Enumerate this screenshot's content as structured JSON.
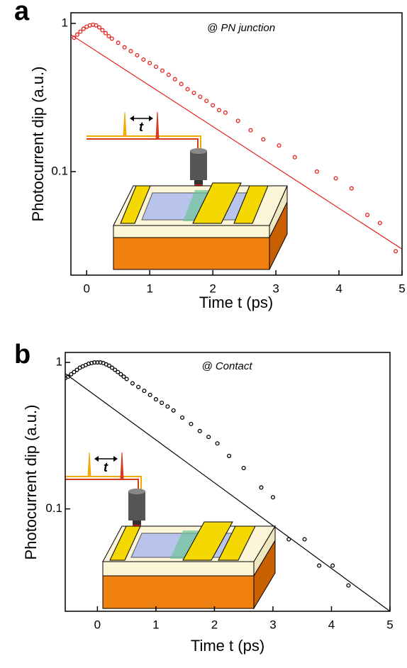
{
  "chart_data": [
    {
      "type": "scatter",
      "panel_label": "a",
      "annotation": "@ PN junction",
      "inset_label": "t",
      "x_label": "Time t (ps)",
      "y_label": "Photocurrent dip (a.u.)",
      "log_y": true,
      "xlim": [
        -0.25,
        5
      ],
      "xticks": [
        0,
        1,
        2,
        3,
        4,
        5
      ],
      "ylim": [
        0.02,
        1.18
      ],
      "yticks": [
        0.1,
        1
      ],
      "series": [
        {
          "style": "markers",
          "color": "#e8201c",
          "x": [
            -0.2,
            -0.15,
            -0.1,
            -0.05,
            0,
            0.05,
            0.1,
            0.15,
            0.2,
            0.25,
            0.3,
            0.35,
            0.4,
            0.5,
            0.6,
            0.7,
            0.8,
            0.9,
            1.0,
            1.1,
            1.2,
            1.3,
            1.4,
            1.5,
            1.6,
            1.7,
            1.8,
            1.9,
            2.0,
            2.1,
            2.2,
            2.4,
            2.6,
            2.8,
            3.05,
            3.3,
            3.65,
            3.95,
            4.2,
            4.45,
            4.65,
            4.9
          ],
          "values": [
            0.8,
            0.84,
            0.88,
            0.92,
            0.95,
            0.97,
            0.98,
            0.97,
            0.94,
            0.9,
            0.86,
            0.82,
            0.79,
            0.74,
            0.69,
            0.65,
            0.61,
            0.57,
            0.54,
            0.51,
            0.48,
            0.45,
            0.42,
            0.39,
            0.36,
            0.34,
            0.32,
            0.3,
            0.28,
            0.26,
            0.25,
            0.22,
            0.19,
            0.165,
            0.15,
            0.125,
            0.1,
            0.09,
            0.077,
            0.051,
            0.045,
            0.029
          ]
        },
        {
          "style": "line",
          "color": "#e8201c",
          "x": [
            -0.25,
            5
          ],
          "values": [
            0.84,
            0.03
          ]
        }
      ]
    },
    {
      "type": "scatter",
      "panel_label": "b",
      "annotation": "@ Contact",
      "inset_label": "t",
      "x_label": "Time t (ps)",
      "y_label": "Photocurrent dip (a.u.)",
      "log_y": true,
      "xlim": [
        -0.55,
        5
      ],
      "xticks": [
        0,
        1,
        2,
        3,
        4,
        5
      ],
      "ylim": [
        0.02,
        1.17
      ],
      "yticks": [
        0.1,
        1
      ],
      "series": [
        {
          "style": "markers",
          "color": "#000000",
          "x": [
            -0.55,
            -0.5,
            -0.45,
            -0.4,
            -0.35,
            -0.3,
            -0.25,
            -0.2,
            -0.15,
            -0.1,
            -0.05,
            0,
            0.05,
            0.1,
            0.15,
            0.2,
            0.25,
            0.3,
            0.35,
            0.4,
            0.45,
            0.5,
            0.6,
            0.7,
            0.8,
            0.9,
            1.0,
            1.1,
            1.2,
            1.3,
            1.45,
            1.6,
            1.75,
            1.9,
            2.05,
            2.25,
            2.5,
            2.8,
            3.0,
            3.27,
            3.54,
            3.79,
            4.02,
            4.29
          ],
          "values": [
            0.78,
            0.8,
            0.83,
            0.86,
            0.89,
            0.92,
            0.94,
            0.96,
            0.98,
            0.99,
            1.0,
            1.0,
            1.0,
            0.99,
            0.97,
            0.95,
            0.92,
            0.89,
            0.86,
            0.83,
            0.8,
            0.77,
            0.72,
            0.68,
            0.64,
            0.6,
            0.56,
            0.53,
            0.5,
            0.47,
            0.42,
            0.38,
            0.34,
            0.31,
            0.28,
            0.23,
            0.19,
            0.14,
            0.12,
            0.062,
            0.062,
            0.041,
            0.041,
            0.03
          ]
        },
        {
          "style": "line",
          "color": "#000000",
          "x": [
            -0.55,
            5
          ],
          "values": [
            0.84,
            0.02
          ]
        }
      ]
    }
  ]
}
